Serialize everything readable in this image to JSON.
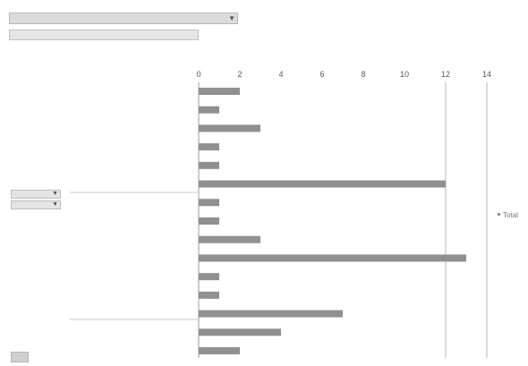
{
  "chart_data": {
    "type": "bar",
    "orientation": "horizontal",
    "categories": [
      "",
      "",
      "",
      "",
      "",
      "",
      "",
      "",
      "",
      "",
      "",
      "",
      "",
      "",
      ""
    ],
    "series": [
      {
        "name": "Total",
        "values": [
          2,
          1,
          3,
          1,
          1,
          12,
          1,
          1,
          3,
          13,
          1,
          1,
          7,
          4,
          2
        ]
      }
    ],
    "xlim": [
      0,
      14
    ],
    "xticks": [
      0,
      2,
      4,
      6,
      8,
      10,
      12,
      14
    ],
    "grid": "vertical gridlines at 12 and 14",
    "legend": "right",
    "bar_color": "#909090"
  }
}
